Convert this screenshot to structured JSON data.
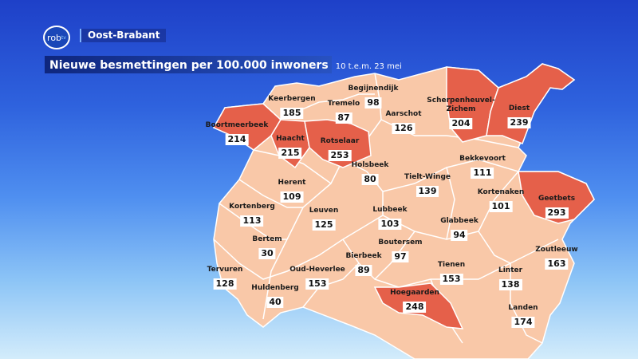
{
  "header": {
    "logo_text": "rob",
    "logo_sup": "tv",
    "region": "Oost-Brabant",
    "title": "Nieuwe besmettingen per 100.000 inwoners",
    "subtitle": "10 t.e.m. 23 mei"
  },
  "colors": {
    "low": "#f9c8a8",
    "high": "#e5604a",
    "border": "#ffffff"
  },
  "municipalities": [
    {
      "name": "Keerbergen",
      "value": "185"
    },
    {
      "name": "Begijnendijk",
      "value": "98"
    },
    {
      "name": "Tremelo",
      "value": "87"
    },
    {
      "name": "Scherpenheuvel-\nZichem",
      "value": "204"
    },
    {
      "name": "Diest",
      "value": "239"
    },
    {
      "name": "Boortmeerbeek",
      "value": "214"
    },
    {
      "name": "Haacht",
      "value": "215"
    },
    {
      "name": "Rotselaar",
      "value": "253"
    },
    {
      "name": "Aarschot",
      "value": "126"
    },
    {
      "name": "Bekkevoort",
      "value": "111"
    },
    {
      "name": "Holsbeek",
      "value": "80"
    },
    {
      "name": "Tielt-Winge",
      "value": "139"
    },
    {
      "name": "Herent",
      "value": "109"
    },
    {
      "name": "Kortenaken",
      "value": "101"
    },
    {
      "name": "Geetbets",
      "value": "293"
    },
    {
      "name": "Kortenberg",
      "value": "113"
    },
    {
      "name": "Leuven",
      "value": "125"
    },
    {
      "name": "Lubbeek",
      "value": "103"
    },
    {
      "name": "Glabbeek",
      "value": "94"
    },
    {
      "name": "Bertem",
      "value": "30"
    },
    {
      "name": "Boutersem",
      "value": "97"
    },
    {
      "name": "Zoutleeuw",
      "value": "163"
    },
    {
      "name": "Tervuren",
      "value": "128"
    },
    {
      "name": "Bierbeek",
      "value": "89"
    },
    {
      "name": "Tienen",
      "value": "153"
    },
    {
      "name": "Oud-Heverlee",
      "value": "153"
    },
    {
      "name": "Linter",
      "value": "138"
    },
    {
      "name": "Huldenberg",
      "value": "40"
    },
    {
      "name": "Hoegaarden",
      "value": "248"
    },
    {
      "name": "Landen",
      "value": "174"
    }
  ]
}
